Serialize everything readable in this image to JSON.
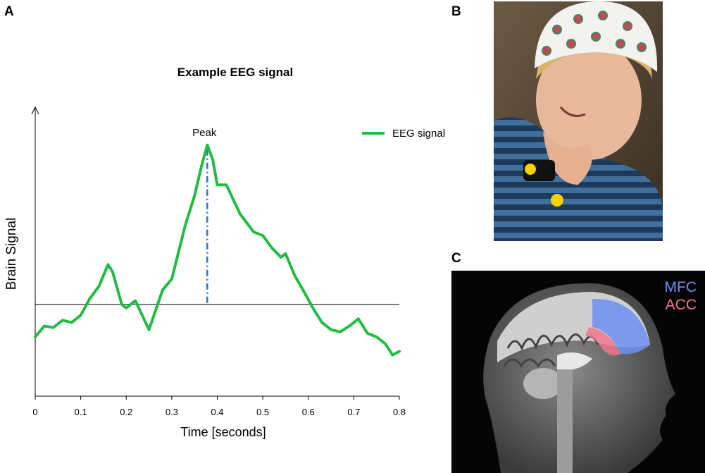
{
  "panels": {
    "a": {
      "letter": "A"
    },
    "b": {
      "letter": "B"
    },
    "c": {
      "letter": "C",
      "labels": {
        "mfc": "MFC",
        "acc": "ACC"
      },
      "colors": {
        "mfc": "#6f8ff0",
        "acc": "#f0788c"
      }
    }
  },
  "chart_data": {
    "type": "line",
    "title": "Example EEG signal",
    "xlabel": "Time [seconds]",
    "ylabel": "Brain Signal",
    "xlim": [
      0,
      0.8
    ],
    "x_ticks": [
      0,
      0.1,
      0.2,
      0.3,
      0.4,
      0.5,
      0.6,
      0.7,
      0.8
    ],
    "x_tick_labels": [
      "0",
      "0.1",
      "0.2",
      "0.3",
      "0.4",
      "0.5",
      "0.6",
      "0.7",
      "0.8"
    ],
    "ylim": [
      -1.2,
      2.5
    ],
    "baseline": 0,
    "grid": false,
    "legend_position": "top-right",
    "series": [
      {
        "name": "EEG signal",
        "color": "#22bb44",
        "x": [
          0,
          0.02,
          0.04,
          0.06,
          0.08,
          0.1,
          0.12,
          0.14,
          0.16,
          0.17,
          0.19,
          0.2,
          0.22,
          0.25,
          0.28,
          0.3,
          0.33,
          0.35,
          0.365,
          0.378,
          0.39,
          0.4,
          0.42,
          0.45,
          0.48,
          0.5,
          0.52,
          0.54,
          0.55,
          0.57,
          0.59,
          0.61,
          0.63,
          0.65,
          0.67,
          0.69,
          0.71,
          0.73,
          0.75,
          0.77,
          0.785,
          0.8
        ],
        "y": [
          -0.45,
          -0.3,
          -0.32,
          -0.22,
          -0.25,
          -0.15,
          0.08,
          0.25,
          0.55,
          0.45,
          0.0,
          -0.05,
          0.05,
          -0.35,
          0.2,
          0.35,
          1.1,
          1.5,
          1.9,
          2.2,
          2.0,
          1.65,
          1.65,
          1.25,
          1.0,
          0.95,
          0.78,
          0.65,
          0.7,
          0.4,
          0.18,
          -0.05,
          -0.25,
          -0.35,
          -0.38,
          -0.3,
          -0.2,
          -0.4,
          -0.45,
          -0.55,
          -0.7,
          -0.65
        ]
      }
    ],
    "annotations": [
      {
        "text": "Peak",
        "x": 0.378,
        "y": 2.2,
        "style": "dash-dot vertical line to baseline",
        "color": "#2277cc"
      }
    ]
  }
}
